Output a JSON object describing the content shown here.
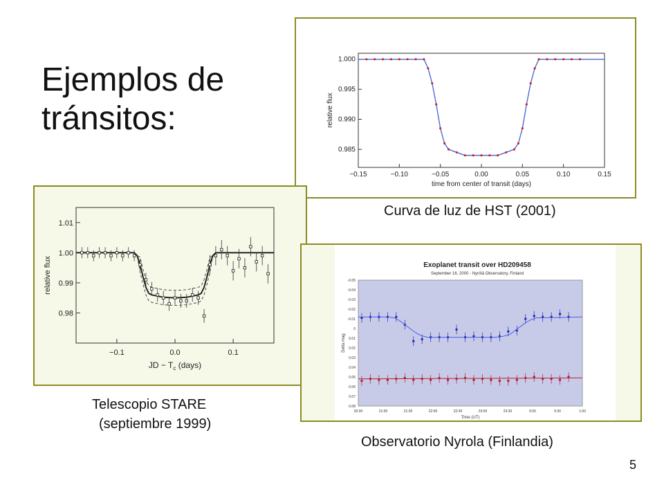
{
  "slide": {
    "title": "Ejemplos de\ntránsitos:",
    "page_number": "5",
    "captions": {
      "hst": "Curva de luz de HST (2001)",
      "stare_line1": "Telescopio STARE",
      "stare_line2": "(septiembre 1999)",
      "nyrola": "Observatorio Nyrola (Finlandia)"
    },
    "colors": {
      "frame_border": "#8b8b22",
      "frame_fill": "#f6f8e8"
    }
  },
  "chart_data": [
    {
      "id": "hst",
      "type": "scatter",
      "title": "",
      "xlabel": "time from center of transit (days)",
      "ylabel": "relative flux",
      "xlim": [
        -0.15,
        0.15
      ],
      "ylim": [
        0.982,
        1.001
      ],
      "xticks": [
        -0.15,
        -0.1,
        -0.05,
        0.0,
        0.05,
        0.1,
        0.15
      ],
      "xtick_labels": [
        "−0.15",
        "−0.10",
        "−0.05",
        "0.00",
        "0.05",
        "0.10",
        "0.15"
      ],
      "yticks": [
        0.985,
        0.99,
        0.995,
        1.0
      ],
      "ytick_labels": [
        "0.985",
        "0.990",
        "0.995",
        "1.000"
      ],
      "series": [
        {
          "kind": "points",
          "color": "#d42020",
          "x": [
            -0.14,
            -0.13,
            -0.12,
            -0.11,
            -0.1,
            -0.09,
            -0.08,
            -0.07,
            -0.065,
            -0.06,
            -0.055,
            -0.05,
            -0.045,
            -0.04,
            -0.03,
            -0.02,
            -0.01,
            0.0,
            0.01,
            0.02,
            0.03,
            0.04,
            0.045,
            0.05,
            0.055,
            0.06,
            0.065,
            0.07,
            0.08,
            0.09,
            0.1,
            0.11,
            0.12
          ],
          "y": [
            1.0,
            1.0,
            1.0,
            1.0,
            1.0,
            1.0,
            1.0,
            1.0,
            0.9985,
            0.996,
            0.9925,
            0.9885,
            0.986,
            0.985,
            0.9845,
            0.984,
            0.984,
            0.984,
            0.984,
            0.984,
            0.9845,
            0.985,
            0.986,
            0.9885,
            0.9925,
            0.996,
            0.9985,
            1.0,
            1.0,
            1.0,
            1.0,
            1.0,
            1.0
          ]
        },
        {
          "kind": "line",
          "color": "#4a6cd6",
          "x": [
            -0.15,
            -0.07,
            -0.065,
            -0.06,
            -0.055,
            -0.05,
            -0.045,
            -0.04,
            -0.03,
            -0.02,
            -0.01,
            0.0,
            0.01,
            0.02,
            0.03,
            0.04,
            0.045,
            0.05,
            0.055,
            0.06,
            0.065,
            0.07,
            0.15
          ],
          "y": [
            1.0,
            1.0,
            0.9985,
            0.996,
            0.9925,
            0.9885,
            0.986,
            0.985,
            0.9845,
            0.984,
            0.984,
            0.984,
            0.984,
            0.984,
            0.9845,
            0.985,
            0.986,
            0.9885,
            0.9925,
            0.996,
            0.9985,
            1.0,
            1.0
          ]
        }
      ]
    },
    {
      "id": "stare",
      "type": "scatter",
      "title": "",
      "xlabel": "JD − T",
      "xlabel_subscript": "c",
      "xlabel_suffix": "(days)",
      "ylabel": "relative flux",
      "xlim": [
        -0.17,
        0.17
      ],
      "ylim": [
        0.97,
        1.015
      ],
      "xticks": [
        -0.1,
        0.0,
        0.1
      ],
      "xtick_labels": [
        "−0.1",
        "0.0",
        "0.1"
      ],
      "yticks": [
        0.98,
        0.99,
        1.0,
        1.01
      ],
      "ytick_labels": [
        "0.98",
        "0.99",
        "1.00",
        "1.01"
      ],
      "series": [
        {
          "kind": "points",
          "color": "#222222",
          "x": [
            -0.16,
            -0.15,
            -0.14,
            -0.13,
            -0.12,
            -0.11,
            -0.1,
            -0.09,
            -0.08,
            -0.07,
            -0.06,
            -0.05,
            -0.04,
            -0.03,
            -0.02,
            -0.01,
            0.0,
            0.01,
            0.02,
            0.03,
            0.04,
            0.05,
            0.06,
            0.07,
            0.08,
            0.09,
            0.1,
            0.11,
            0.12,
            0.13,
            0.14,
            0.15,
            0.16
          ],
          "y": [
            1.0,
            1.0,
            0.999,
            1.0,
            1.0,
            0.999,
            1.0,
            0.999,
            1.0,
            0.999,
            0.996,
            0.991,
            0.988,
            0.986,
            0.985,
            0.983,
            0.985,
            0.984,
            0.984,
            0.986,
            0.985,
            0.979,
            0.996,
            0.999,
            1.001,
            0.999,
            0.994,
            0.998,
            0.995,
            1.002,
            0.997,
            0.999,
            0.993
          ]
        },
        {
          "kind": "line",
          "color": "#222222",
          "x": [
            -0.17,
            -0.07,
            -0.065,
            -0.06,
            -0.055,
            -0.05,
            -0.045,
            -0.04,
            -0.02,
            0.0,
            0.02,
            0.04,
            0.045,
            0.05,
            0.055,
            0.06,
            0.065,
            0.07,
            0.17
          ],
          "y": [
            1.0,
            1.0,
            0.999,
            0.996,
            0.992,
            0.9885,
            0.9865,
            0.986,
            0.9852,
            0.985,
            0.9852,
            0.986,
            0.9865,
            0.9885,
            0.992,
            0.996,
            0.999,
            1.0,
            1.0
          ]
        }
      ]
    },
    {
      "id": "nyrola",
      "type": "scatter",
      "title": "Exoplanet transit over HD209458",
      "subtitle": "September 16, 2000 - Nyrölä Observatory, Finland",
      "xlabel": "Time (UT)",
      "ylabel": "Delta mag",
      "xlim": [
        0,
        13
      ],
      "ylim": [
        0.08,
        -0.05
      ],
      "xtick_labels": [
        "20:30",
        "21:00",
        "21:30",
        "22:00",
        "22:30",
        "23:00",
        "23:30",
        "0:00",
        "0:30",
        "1:00"
      ],
      "ytick_labels": [
        "-0.05",
        "-0.04",
        "-0.03",
        "-0.02",
        "-0.01",
        "0",
        "0.01",
        "0.02",
        "0.03",
        "0.04",
        "0.05",
        "0.06",
        "0.07",
        "0.08"
      ],
      "series": [
        {
          "kind": "points",
          "color": "#1f2fb0",
          "x": [
            0.2,
            0.7,
            1.2,
            1.7,
            2.2,
            2.7,
            3.2,
            3.7,
            4.2,
            4.7,
            5.2,
            5.7,
            6.2,
            6.7,
            7.2,
            7.7,
            8.2,
            8.7,
            9.2,
            9.7,
            10.2,
            10.7,
            11.2,
            11.7,
            12.2
          ],
          "y": [
            -0.011,
            -0.012,
            -0.012,
            -0.012,
            -0.012,
            -0.004,
            0.013,
            0.011,
            0.009,
            0.009,
            0.009,
            0.001,
            0.009,
            0.008,
            0.009,
            0.009,
            0.008,
            0.003,
            0.002,
            -0.01,
            -0.013,
            -0.012,
            -0.012,
            -0.015,
            -0.012
          ]
        },
        {
          "kind": "line",
          "color": "#4a5ee6",
          "x": [
            0,
            1.8,
            2.1,
            2.4,
            2.7,
            3.0,
            3.3,
            3.6,
            4.0,
            8.0,
            8.4,
            8.8,
            9.1,
            9.4,
            9.7,
            10.0,
            10.3,
            13
          ],
          "y": [
            -0.012,
            -0.012,
            -0.011,
            -0.008,
            -0.004,
            0.0,
            0.004,
            0.007,
            0.009,
            0.009,
            0.008,
            0.006,
            0.002,
            -0.002,
            -0.006,
            -0.009,
            -0.011,
            -0.012
          ]
        },
        {
          "kind": "points",
          "color": "#b0203a",
          "x": [
            0.2,
            0.7,
            1.2,
            1.7,
            2.2,
            2.7,
            3.2,
            3.7,
            4.2,
            4.7,
            5.2,
            5.7,
            6.2,
            6.7,
            7.2,
            7.7,
            8.2,
            8.7,
            9.2,
            9.7,
            10.2,
            10.7,
            11.2,
            11.7,
            12.2
          ],
          "y": [
            0.054,
            0.052,
            0.053,
            0.053,
            0.052,
            0.051,
            0.053,
            0.052,
            0.053,
            0.051,
            0.053,
            0.052,
            0.051,
            0.053,
            0.052,
            0.053,
            0.054,
            0.054,
            0.053,
            0.051,
            0.05,
            0.052,
            0.052,
            0.053,
            0.05
          ]
        },
        {
          "kind": "line",
          "color": "#b0203a",
          "x": [
            0,
            13
          ],
          "y": [
            0.052,
            0.051
          ]
        }
      ]
    }
  ]
}
